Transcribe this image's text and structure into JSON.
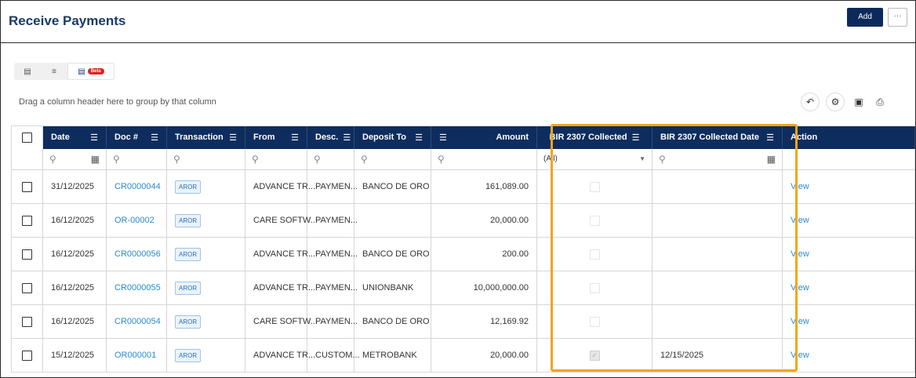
{
  "header": {
    "title": "Receive Payments",
    "add_label": "Add",
    "more_label": "···"
  },
  "view_toggle": {
    "beta_label": "Beta"
  },
  "group_hint": "Drag a column header here to group by that column",
  "toolbar_icons": [
    "undo-icon",
    "gear-icon",
    "export-icon",
    "print-icon"
  ],
  "columns": {
    "date": "Date",
    "doc": "Doc #",
    "transaction": "Transaction",
    "from": "From",
    "desc": "Desc.",
    "deposit_to": "Deposit To",
    "amount": "Amount",
    "bir_collected": "BIR 2307 Collected",
    "bir_collected_date": "BIR 2307 Collected Date",
    "action": "Action"
  },
  "filters": {
    "bir_collected_value": "(All)"
  },
  "rows": [
    {
      "date": "31/12/2025",
      "doc": "CR0000044",
      "transaction": "AROR",
      "from": "ADVANCE TR...",
      "desc": "PAYMEN...",
      "deposit_to": "BANCO DE ORO",
      "amount": "161,089.00",
      "bir_collected": false,
      "bir_date": "",
      "action": "View"
    },
    {
      "date": "16/12/2025",
      "doc": "OR-00002",
      "transaction": "AROR",
      "from": "CARE SOFTW...",
      "desc": "PAYMEN...",
      "deposit_to": "",
      "amount": "20,000.00",
      "bir_collected": false,
      "bir_date": "",
      "action": "View"
    },
    {
      "date": "16/12/2025",
      "doc": "CR0000056",
      "transaction": "AROR",
      "from": "ADVANCE TR...",
      "desc": "PAYMEN...",
      "deposit_to": "BANCO DE ORO",
      "amount": "200.00",
      "bir_collected": false,
      "bir_date": "",
      "action": "View"
    },
    {
      "date": "16/12/2025",
      "doc": "CR0000055",
      "transaction": "AROR",
      "from": "ADVANCE TR...",
      "desc": "PAYMEN...",
      "deposit_to": "UNIONBANK",
      "amount": "10,000,000.00",
      "bir_collected": false,
      "bir_date": "",
      "action": "View"
    },
    {
      "date": "16/12/2025",
      "doc": "CR0000054",
      "transaction": "AROR",
      "from": "CARE SOFTW...",
      "desc": "PAYMEN...",
      "deposit_to": "BANCO DE ORO",
      "amount": "12,169.92",
      "bir_collected": false,
      "bir_date": "",
      "action": "View"
    },
    {
      "date": "15/12/2025",
      "doc": "OR000001",
      "transaction": "AROR",
      "from": "ADVANCE TR...",
      "desc": "CUSTOM...",
      "deposit_to": "METROBANK",
      "amount": "20,000.00",
      "bir_collected": true,
      "bir_date": "12/15/2025",
      "action": "View"
    }
  ],
  "colors": {
    "header_bg": "#0e2d5e",
    "title": "#1a3a6b",
    "link": "#2a8bd0",
    "highlight": "#f4a516",
    "beta": "#e02020"
  }
}
